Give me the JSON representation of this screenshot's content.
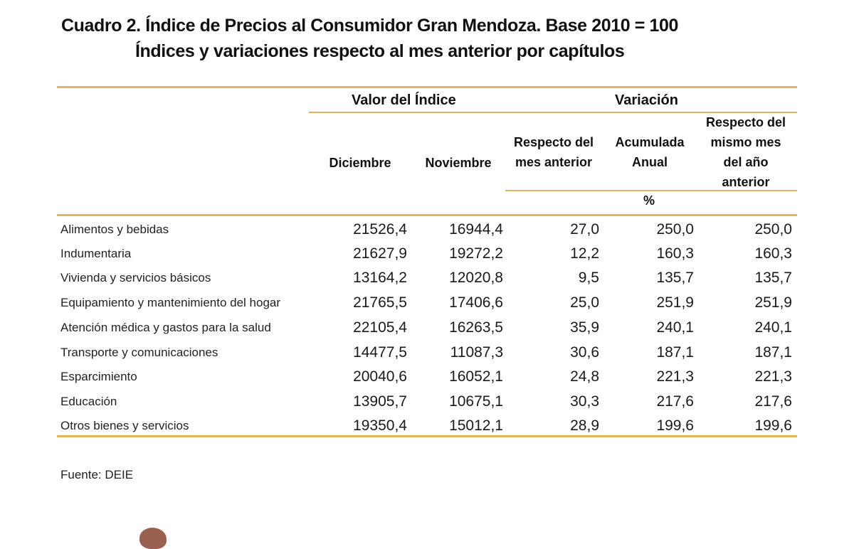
{
  "title": {
    "line1": "Cuadro 2. Índice de Precios al Consumidor Gran Mendoza. Base 2010 = 100",
    "line2": "Índices y variaciones respecto al mes anterior por capítulos"
  },
  "header": {
    "group_index": "Valor del Índice",
    "group_variation": "Variación",
    "col_dec": "Diciembre",
    "col_nov": "Noviembre",
    "col_prev_1": "Respecto del",
    "col_prev_2": "mes anterior",
    "col_acc_1": "Acumulada",
    "col_acc_2": "Anual",
    "col_year_1": "Respecto del",
    "col_year_2": "mismo mes",
    "col_year_3": "del año",
    "col_year_4": "anterior",
    "unit": "%"
  },
  "rows": [
    {
      "label": "Alimentos y bebidas",
      "dec": "21526,4",
      "nov": "16944,4",
      "prev": "27,0",
      "acc": "250,0",
      "year": "250,0"
    },
    {
      "label": "Indumentaria",
      "dec": "21627,9",
      "nov": "19272,2",
      "prev": "12,2",
      "acc": "160,3",
      "year": "160,3"
    },
    {
      "label": "Vivienda y servicios básicos",
      "dec": "13164,2",
      "nov": "12020,8",
      "prev": "9,5",
      "acc": "135,7",
      "year": "135,7"
    },
    {
      "label": "Equipamiento y mantenimiento del hogar",
      "dec": "21765,5",
      "nov": "17406,6",
      "prev": "25,0",
      "acc": "251,9",
      "year": "251,9"
    },
    {
      "label": "Atención médica y gastos para la salud",
      "dec": "22105,4",
      "nov": "16263,5",
      "prev": "35,9",
      "acc": "240,1",
      "year": "240,1"
    },
    {
      "label": "Transporte y comunicaciones",
      "dec": "14477,5",
      "nov": "11087,3",
      "prev": "30,6",
      "acc": "187,1",
      "year": "187,1"
    },
    {
      "label": "Esparcimiento",
      "dec": "20040,6",
      "nov": "16052,1",
      "prev": "24,8",
      "acc": "221,3",
      "year": "221,3"
    },
    {
      "label": "Educación",
      "dec": "13905,7",
      "nov": "10675,1",
      "prev": "30,3",
      "acc": "217,6",
      "year": "217,6"
    },
    {
      "label": "Otros bienes y servicios",
      "dec": "19350,4",
      "nov": "15012,1",
      "prev": "28,9",
      "acc": "199,6",
      "year": "199,6"
    }
  ],
  "source": "Fuente: DEIE",
  "colors": {
    "rule": "#e3b55e",
    "blob": "#9a6150"
  }
}
